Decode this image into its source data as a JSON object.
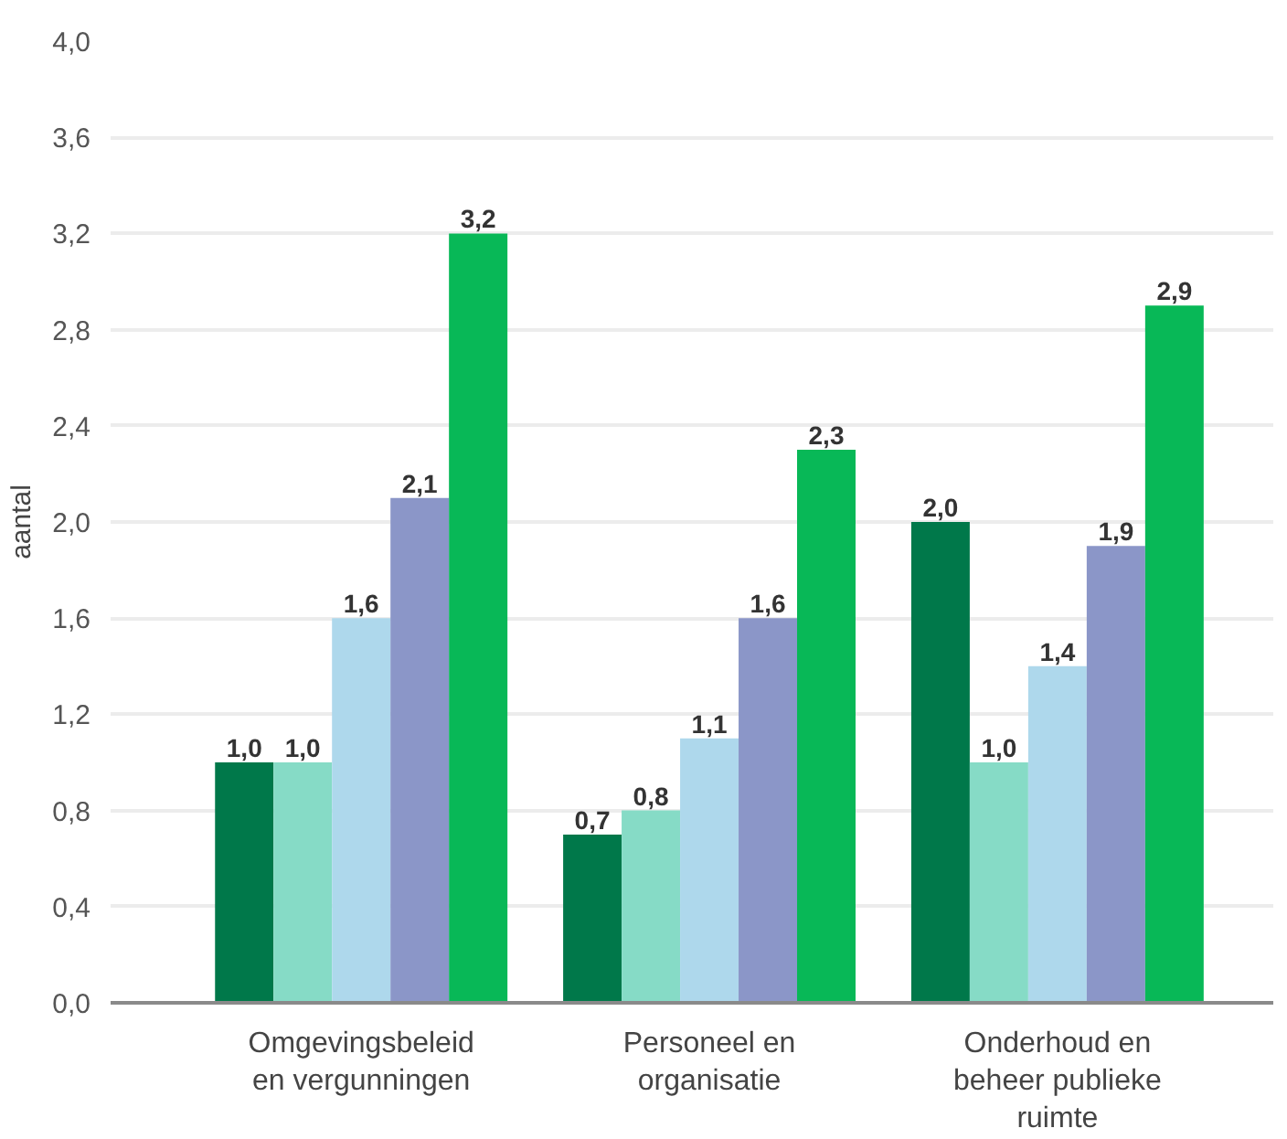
{
  "chart_data": {
    "type": "bar",
    "ylabel": "aantal",
    "categories": [
      "Omgevingsbeleid\nen vergunningen",
      "Personeel en\norganisatie",
      "Onderhoud en\nbeheer publieke\nruimte"
    ],
    "series": [
      {
        "color": "#00784a",
        "values": [
          1.0,
          0.7,
          2.0
        ],
        "value_labels": [
          "1,0",
          "0,7",
          "2,0"
        ]
      },
      {
        "color": "#86dbc6",
        "values": [
          1.0,
          0.8,
          1.0
        ],
        "value_labels": [
          "1,0",
          "0,8",
          "1,0"
        ]
      },
      {
        "color": "#aed8ec",
        "values": [
          1.6,
          1.1,
          1.4
        ],
        "value_labels": [
          "1,6",
          "1,1",
          "1,4"
        ]
      },
      {
        "color": "#8b96c8",
        "values": [
          2.1,
          1.6,
          1.9
        ],
        "value_labels": [
          "2,1",
          "1,6",
          "1,9"
        ]
      },
      {
        "color": "#08b857",
        "values": [
          3.2,
          2.3,
          2.9
        ],
        "value_labels": [
          "3,2",
          "2,3",
          "2,9"
        ]
      }
    ],
    "ylim": [
      0,
      4.0
    ],
    "yticks": [
      {
        "value": 0,
        "label": "0,0"
      },
      {
        "value": 0.4,
        "label": "0,4"
      },
      {
        "value": 0.8,
        "label": "0,8"
      },
      {
        "value": 1.2,
        "label": "1,2"
      },
      {
        "value": 1.6,
        "label": "1,6"
      },
      {
        "value": 2.0,
        "label": "2,0"
      },
      {
        "value": 2.4,
        "label": "2,4"
      },
      {
        "value": 2.8,
        "label": "2,8"
      },
      {
        "value": 3.2,
        "label": "3,2"
      },
      {
        "value": 3.6,
        "label": "3,6"
      },
      {
        "value": 4.0,
        "label": "4,0"
      }
    ],
    "grid": "y"
  }
}
